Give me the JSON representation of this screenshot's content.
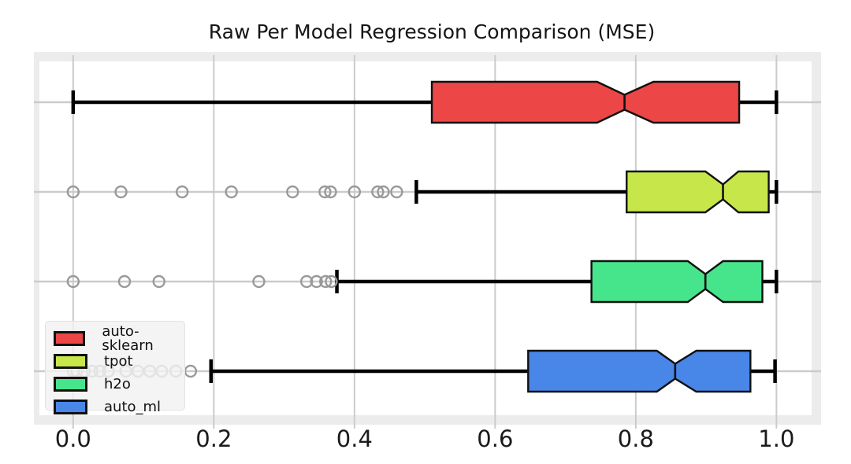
{
  "figure": {
    "title": "Raw Per Model Regression Comparison (MSE)"
  },
  "chart_data": {
    "type": "boxplot",
    "orientation": "horizontal",
    "notched": true,
    "title": "Raw Per Model Regression Comparison (MSE)",
    "xlabel": "",
    "ylabel": "",
    "xlim": [
      -0.048,
      1.05
    ],
    "grid": true,
    "x_ticks": [
      {
        "label": "0.0",
        "value": 0.0
      },
      {
        "label": "0.2",
        "value": 0.2
      },
      {
        "label": "0.4",
        "value": 0.4
      },
      {
        "label": "0.6",
        "value": 0.6
      },
      {
        "label": "0.8",
        "value": 0.8
      },
      {
        "label": "1.0",
        "value": 1.0
      }
    ],
    "legend": {
      "position": "lower left",
      "entries": [
        "auto-sklearn",
        "tpot",
        "h2o",
        "auto_ml"
      ]
    },
    "series": [
      {
        "name": "auto-sklearn",
        "color": "#ec4646",
        "whisker_lo": 0.0,
        "q1": 0.51,
        "notch_lo": 0.745,
        "median": 0.784,
        "notch_hi": 0.825,
        "q3": 0.947,
        "whisker_hi": 1.0,
        "outliers": []
      },
      {
        "name": "tpot",
        "color": "#c7e64a",
        "whisker_lo": 0.488,
        "q1": 0.787,
        "notch_lo": 0.899,
        "median": 0.924,
        "notch_hi": 0.946,
        "q3": 0.989,
        "whisker_hi": 1.0,
        "outliers": [
          0.0,
          0.068,
          0.155,
          0.225,
          0.312,
          0.358,
          0.366,
          0.4,
          0.433,
          0.441,
          0.46
        ]
      },
      {
        "name": "h2o",
        "color": "#47e58b",
        "whisker_lo": 0.375,
        "q1": 0.737,
        "notch_lo": 0.874,
        "median": 0.899,
        "notch_hi": 0.924,
        "q3": 0.98,
        "whisker_hi": 1.0,
        "outliers": [
          0.0,
          0.073,
          0.122,
          0.264,
          0.332,
          0.346,
          0.359,
          0.367
        ]
      },
      {
        "name": "auto_ml",
        "color": "#4886e8",
        "whisker_lo": 0.196,
        "q1": 0.647,
        "notch_lo": 0.83,
        "median": 0.856,
        "notch_hi": 0.886,
        "q3": 0.963,
        "whisker_hi": 0.998,
        "outliers": [
          0.0,
          0.005,
          0.016,
          0.027,
          0.038,
          0.05,
          0.075,
          0.092,
          0.109,
          0.126,
          0.146,
          0.167
        ]
      }
    ],
    "styles": {
      "grid_color": "#cbcbcb",
      "frame_color": "#ececec",
      "plot_background": "#ffffff",
      "box_edge_color": "#111111",
      "whisker_color": "#000000",
      "outlier_stroke": "#999999",
      "legend_background": "#f2f2f2"
    }
  }
}
